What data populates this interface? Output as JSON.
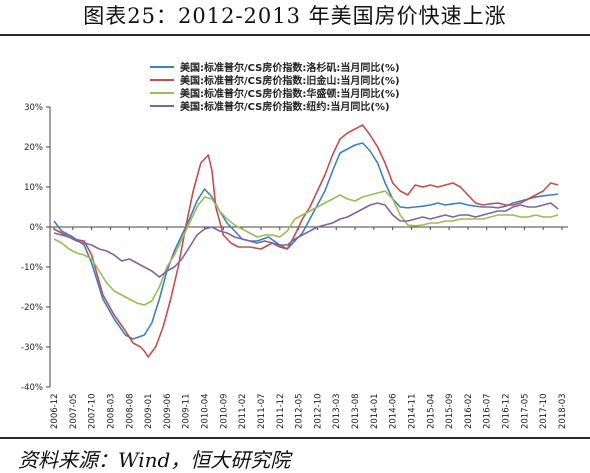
{
  "title": "图表25：2012-2013 年美国房价快速上涨",
  "source": "资料来源：Wind，恒大研究院",
  "chart_data": {
    "type": "line",
    "ylim": [
      -40,
      30
    ],
    "y_ticks": [
      "30%",
      "20%",
      "10%",
      "0%",
      "-10%",
      "-20%",
      "-30%",
      "-40%"
    ],
    "y_tick_values": [
      30,
      20,
      10,
      0,
      -10,
      -20,
      -30,
      -40
    ],
    "x_ticks": [
      "2006-12",
      "2007-05",
      "2007-10",
      "2008-03",
      "2008-08",
      "2009-01",
      "2009-06",
      "2009-11",
      "2010-04",
      "2010-09",
      "2011-02",
      "2011-07",
      "2011-12",
      "2012-05",
      "2012-10",
      "2013-03",
      "2013-08",
      "2014-01",
      "2014-06",
      "2014-11",
      "2015-04",
      "2015-09",
      "2016-02",
      "2016-07",
      "2016-12",
      "2017-05",
      "2017-10",
      "2018-03"
    ],
    "legend_position": "top-right",
    "grid": false,
    "series": [
      {
        "name": "美国:标准普尔/CS房价指数:洛杉矶:当月同比(%)",
        "color": "#3f7fbf",
        "points": [
          [
            0,
            1.5
          ],
          [
            2,
            -1
          ],
          [
            5,
            -2.5
          ],
          [
            8,
            -4.5
          ],
          [
            10,
            -9
          ],
          [
            13,
            -18
          ],
          [
            16,
            -23
          ],
          [
            19,
            -27
          ],
          [
            21,
            -28
          ],
          [
            24,
            -27
          ],
          [
            26,
            -24
          ],
          [
            28,
            -18
          ],
          [
            30,
            -11
          ],
          [
            32,
            -6
          ],
          [
            34,
            -2
          ],
          [
            36,
            2
          ],
          [
            38,
            6.5
          ],
          [
            40,
            9.5
          ],
          [
            42,
            7.5
          ],
          [
            44,
            4
          ],
          [
            46,
            1
          ],
          [
            48,
            -1
          ],
          [
            50,
            -3
          ],
          [
            52,
            -3.5
          ],
          [
            54,
            -3.5
          ],
          [
            57,
            -2.5
          ],
          [
            60,
            -4.5
          ],
          [
            62,
            -5.5
          ],
          [
            64,
            -3.5
          ],
          [
            66,
            -1.5
          ],
          [
            68,
            2
          ],
          [
            70,
            5.5
          ],
          [
            72,
            9
          ],
          [
            74,
            14
          ],
          [
            76,
            18.5
          ],
          [
            78,
            19.5
          ],
          [
            80,
            20.5
          ],
          [
            82,
            21
          ],
          [
            84,
            19
          ],
          [
            86,
            16
          ],
          [
            88,
            11
          ],
          [
            90,
            7
          ],
          [
            92,
            5
          ],
          [
            94,
            4.8
          ],
          [
            96,
            5
          ],
          [
            98,
            5.2
          ],
          [
            100,
            5.5
          ],
          [
            102,
            6
          ],
          [
            104,
            5.5
          ],
          [
            106,
            5.8
          ],
          [
            108,
            6
          ],
          [
            110,
            5.5
          ],
          [
            112,
            5.2
          ],
          [
            114,
            5
          ],
          [
            116,
            5
          ],
          [
            118,
            4.8
          ],
          [
            120,
            5.2
          ],
          [
            122,
            6
          ],
          [
            124,
            6.5
          ],
          [
            126,
            7
          ],
          [
            128,
            7.5
          ],
          [
            130,
            7.8
          ],
          [
            132,
            8
          ],
          [
            134,
            8.2
          ]
        ]
      },
      {
        "name": "美国:标准普尔/CS房价指数:旧金山:当月同比(%)",
        "color": "#c0504d",
        "points": [
          [
            0,
            -0.5
          ],
          [
            2,
            -1.5
          ],
          [
            5,
            -3
          ],
          [
            8,
            -3.5
          ],
          [
            10,
            -7
          ],
          [
            13,
            -17
          ],
          [
            16,
            -22
          ],
          [
            19,
            -26
          ],
          [
            21,
            -29
          ],
          [
            23,
            -30
          ],
          [
            24,
            -31
          ],
          [
            25,
            -32.5
          ],
          [
            27,
            -30
          ],
          [
            29,
            -25
          ],
          [
            31,
            -18
          ],
          [
            33,
            -10
          ],
          [
            35,
            0
          ],
          [
            37,
            9
          ],
          [
            39,
            16
          ],
          [
            41,
            18
          ],
          [
            42,
            14
          ],
          [
            43,
            5
          ],
          [
            45,
            -2
          ],
          [
            47,
            -4
          ],
          [
            49,
            -5
          ],
          [
            52,
            -5
          ],
          [
            55,
            -5.5
          ],
          [
            58,
            -4
          ],
          [
            60,
            -5
          ],
          [
            62,
            -5.5
          ],
          [
            64,
            -2
          ],
          [
            66,
            2
          ],
          [
            68,
            5
          ],
          [
            70,
            9
          ],
          [
            72,
            13
          ],
          [
            74,
            18
          ],
          [
            76,
            22
          ],
          [
            78,
            23.5
          ],
          [
            80,
            24.5
          ],
          [
            82,
            25.5
          ],
          [
            84,
            23
          ],
          [
            86,
            20
          ],
          [
            88,
            16
          ],
          [
            90,
            11
          ],
          [
            92,
            9
          ],
          [
            94,
            8
          ],
          [
            96,
            10.5
          ],
          [
            98,
            10
          ],
          [
            100,
            10.5
          ],
          [
            102,
            10
          ],
          [
            104,
            10.5
          ],
          [
            106,
            11
          ],
          [
            108,
            10
          ],
          [
            110,
            8
          ],
          [
            112,
            6
          ],
          [
            114,
            5.5
          ],
          [
            116,
            5.8
          ],
          [
            118,
            6
          ],
          [
            120,
            5.5
          ],
          [
            122,
            5.5
          ],
          [
            124,
            6
          ],
          [
            126,
            7
          ],
          [
            128,
            8
          ],
          [
            130,
            9
          ],
          [
            132,
            11
          ],
          [
            134,
            10.5
          ]
        ]
      },
      {
        "name": "美国:标准普尔/CS房价指数:华盛顿:当月同比(%)",
        "color": "#9bbb59",
        "points": [
          [
            0,
            -3
          ],
          [
            2,
            -4
          ],
          [
            4,
            -5.5
          ],
          [
            6,
            -6.5
          ],
          [
            8,
            -7
          ],
          [
            10,
            -8
          ],
          [
            12,
            -11
          ],
          [
            14,
            -14
          ],
          [
            16,
            -16
          ],
          [
            18,
            -17
          ],
          [
            20,
            -18
          ],
          [
            22,
            -19
          ],
          [
            24,
            -19.5
          ],
          [
            26,
            -18.5
          ],
          [
            28,
            -15
          ],
          [
            30,
            -10
          ],
          [
            32,
            -7
          ],
          [
            34,
            -3
          ],
          [
            36,
            1
          ],
          [
            38,
            5
          ],
          [
            40,
            7.5
          ],
          [
            42,
            7
          ],
          [
            44,
            4
          ],
          [
            46,
            2
          ],
          [
            48,
            0.5
          ],
          [
            50,
            -0.5
          ],
          [
            52,
            -1.5
          ],
          [
            54,
            -2.5
          ],
          [
            56,
            -2
          ],
          [
            58,
            -2
          ],
          [
            60,
            -2.5
          ],
          [
            62,
            -1
          ],
          [
            64,
            2
          ],
          [
            66,
            3
          ],
          [
            68,
            4
          ],
          [
            70,
            5
          ],
          [
            72,
            6
          ],
          [
            74,
            7
          ],
          [
            76,
            8
          ],
          [
            78,
            7
          ],
          [
            80,
            6.5
          ],
          [
            82,
            7.5
          ],
          [
            84,
            8
          ],
          [
            86,
            8.5
          ],
          [
            88,
            9
          ],
          [
            90,
            7
          ],
          [
            92,
            3
          ],
          [
            94,
            0.5
          ],
          [
            96,
            0.3
          ],
          [
            98,
            0.5
          ],
          [
            100,
            1
          ],
          [
            102,
            1
          ],
          [
            104,
            1.5
          ],
          [
            106,
            1.5
          ],
          [
            108,
            2
          ],
          [
            110,
            2
          ],
          [
            112,
            2
          ],
          [
            114,
            2
          ],
          [
            116,
            2.5
          ],
          [
            118,
            3
          ],
          [
            120,
            3
          ],
          [
            122,
            3
          ],
          [
            124,
            2.5
          ],
          [
            126,
            2.5
          ],
          [
            128,
            3
          ],
          [
            130,
            2.5
          ],
          [
            132,
            2.5
          ],
          [
            134,
            3
          ]
        ]
      },
      {
        "name": "美国:标准普尔/CS房价指数:纽约:当月同比(%)",
        "color": "#8064a2",
        "points": [
          [
            0,
            -1.5
          ],
          [
            2,
            -2
          ],
          [
            4,
            -2.5
          ],
          [
            6,
            -3.5
          ],
          [
            8,
            -4
          ],
          [
            10,
            -4.5
          ],
          [
            12,
            -5.5
          ],
          [
            14,
            -6
          ],
          [
            16,
            -7
          ],
          [
            18,
            -8.5
          ],
          [
            20,
            -8
          ],
          [
            22,
            -9
          ],
          [
            24,
            -10
          ],
          [
            26,
            -11
          ],
          [
            28,
            -12.5
          ],
          [
            30,
            -11
          ],
          [
            32,
            -10
          ],
          [
            34,
            -8
          ],
          [
            36,
            -5
          ],
          [
            38,
            -2
          ],
          [
            40,
            -0.5
          ],
          [
            42,
            0
          ],
          [
            44,
            -1
          ],
          [
            46,
            -1.5
          ],
          [
            48,
            -2.5
          ],
          [
            50,
            -3
          ],
          [
            52,
            -3.5
          ],
          [
            54,
            -4
          ],
          [
            56,
            -3.5
          ],
          [
            58,
            -4
          ],
          [
            60,
            -4.5
          ],
          [
            62,
            -4.5
          ],
          [
            64,
            -3
          ],
          [
            66,
            -2
          ],
          [
            68,
            -1
          ],
          [
            70,
            0
          ],
          [
            72,
            0.5
          ],
          [
            74,
            1
          ],
          [
            76,
            2
          ],
          [
            78,
            2.5
          ],
          [
            80,
            3.5
          ],
          [
            82,
            4.5
          ],
          [
            84,
            5.5
          ],
          [
            86,
            6
          ],
          [
            88,
            5.5
          ],
          [
            90,
            3
          ],
          [
            92,
            1.5
          ],
          [
            94,
            1.5
          ],
          [
            96,
            2
          ],
          [
            98,
            2.5
          ],
          [
            100,
            2
          ],
          [
            102,
            2.5
          ],
          [
            104,
            3
          ],
          [
            106,
            2.5
          ],
          [
            108,
            3
          ],
          [
            110,
            3
          ],
          [
            112,
            2.5
          ],
          [
            114,
            3
          ],
          [
            116,
            3.5
          ],
          [
            118,
            4
          ],
          [
            120,
            4
          ],
          [
            122,
            5
          ],
          [
            124,
            5.5
          ],
          [
            126,
            5
          ],
          [
            128,
            5
          ],
          [
            130,
            5.5
          ],
          [
            132,
            6
          ],
          [
            134,
            4.5
          ]
        ]
      }
    ]
  }
}
